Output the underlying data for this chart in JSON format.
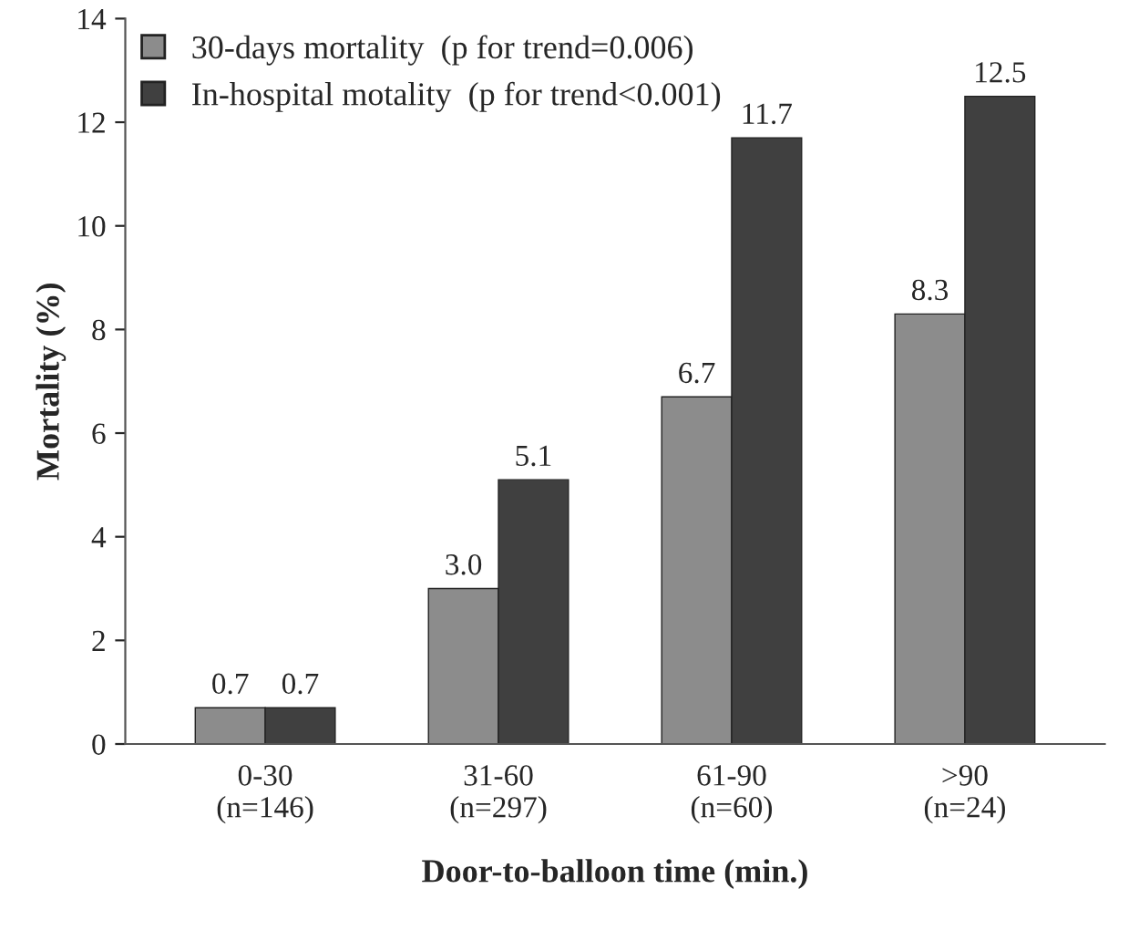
{
  "chart_data": {
    "type": "bar",
    "xlabel": "Door-to-balloon time (min.)",
    "ylabel": "Mortality (%)",
    "categories": [
      "0-30\n(n=146)",
      "31-60\n(n=297)",
      "61-90\n(n=60)",
      ">90\n(n=24)"
    ],
    "series": [
      {
        "name": "30-days mortality  (p for trend=0.006)",
        "color": "#8c8c8c",
        "values": [
          0.7,
          3.0,
          6.7,
          8.3
        ],
        "value_labels": [
          "0.7",
          "3.0",
          "6.7",
          "8.3"
        ]
      },
      {
        "name": "In-hospital motality  (p for trend<0.001)",
        "color": "#404040",
        "values": [
          0.7,
          5.1,
          11.7,
          12.5
        ],
        "value_labels": [
          "0.7",
          "5.1",
          "11.7",
          "12.5"
        ]
      }
    ],
    "ylim": [
      0,
      14
    ],
    "yticks": [
      0,
      2,
      4,
      6,
      8,
      10,
      12,
      14
    ],
    "grid": false,
    "legend": "top left"
  }
}
